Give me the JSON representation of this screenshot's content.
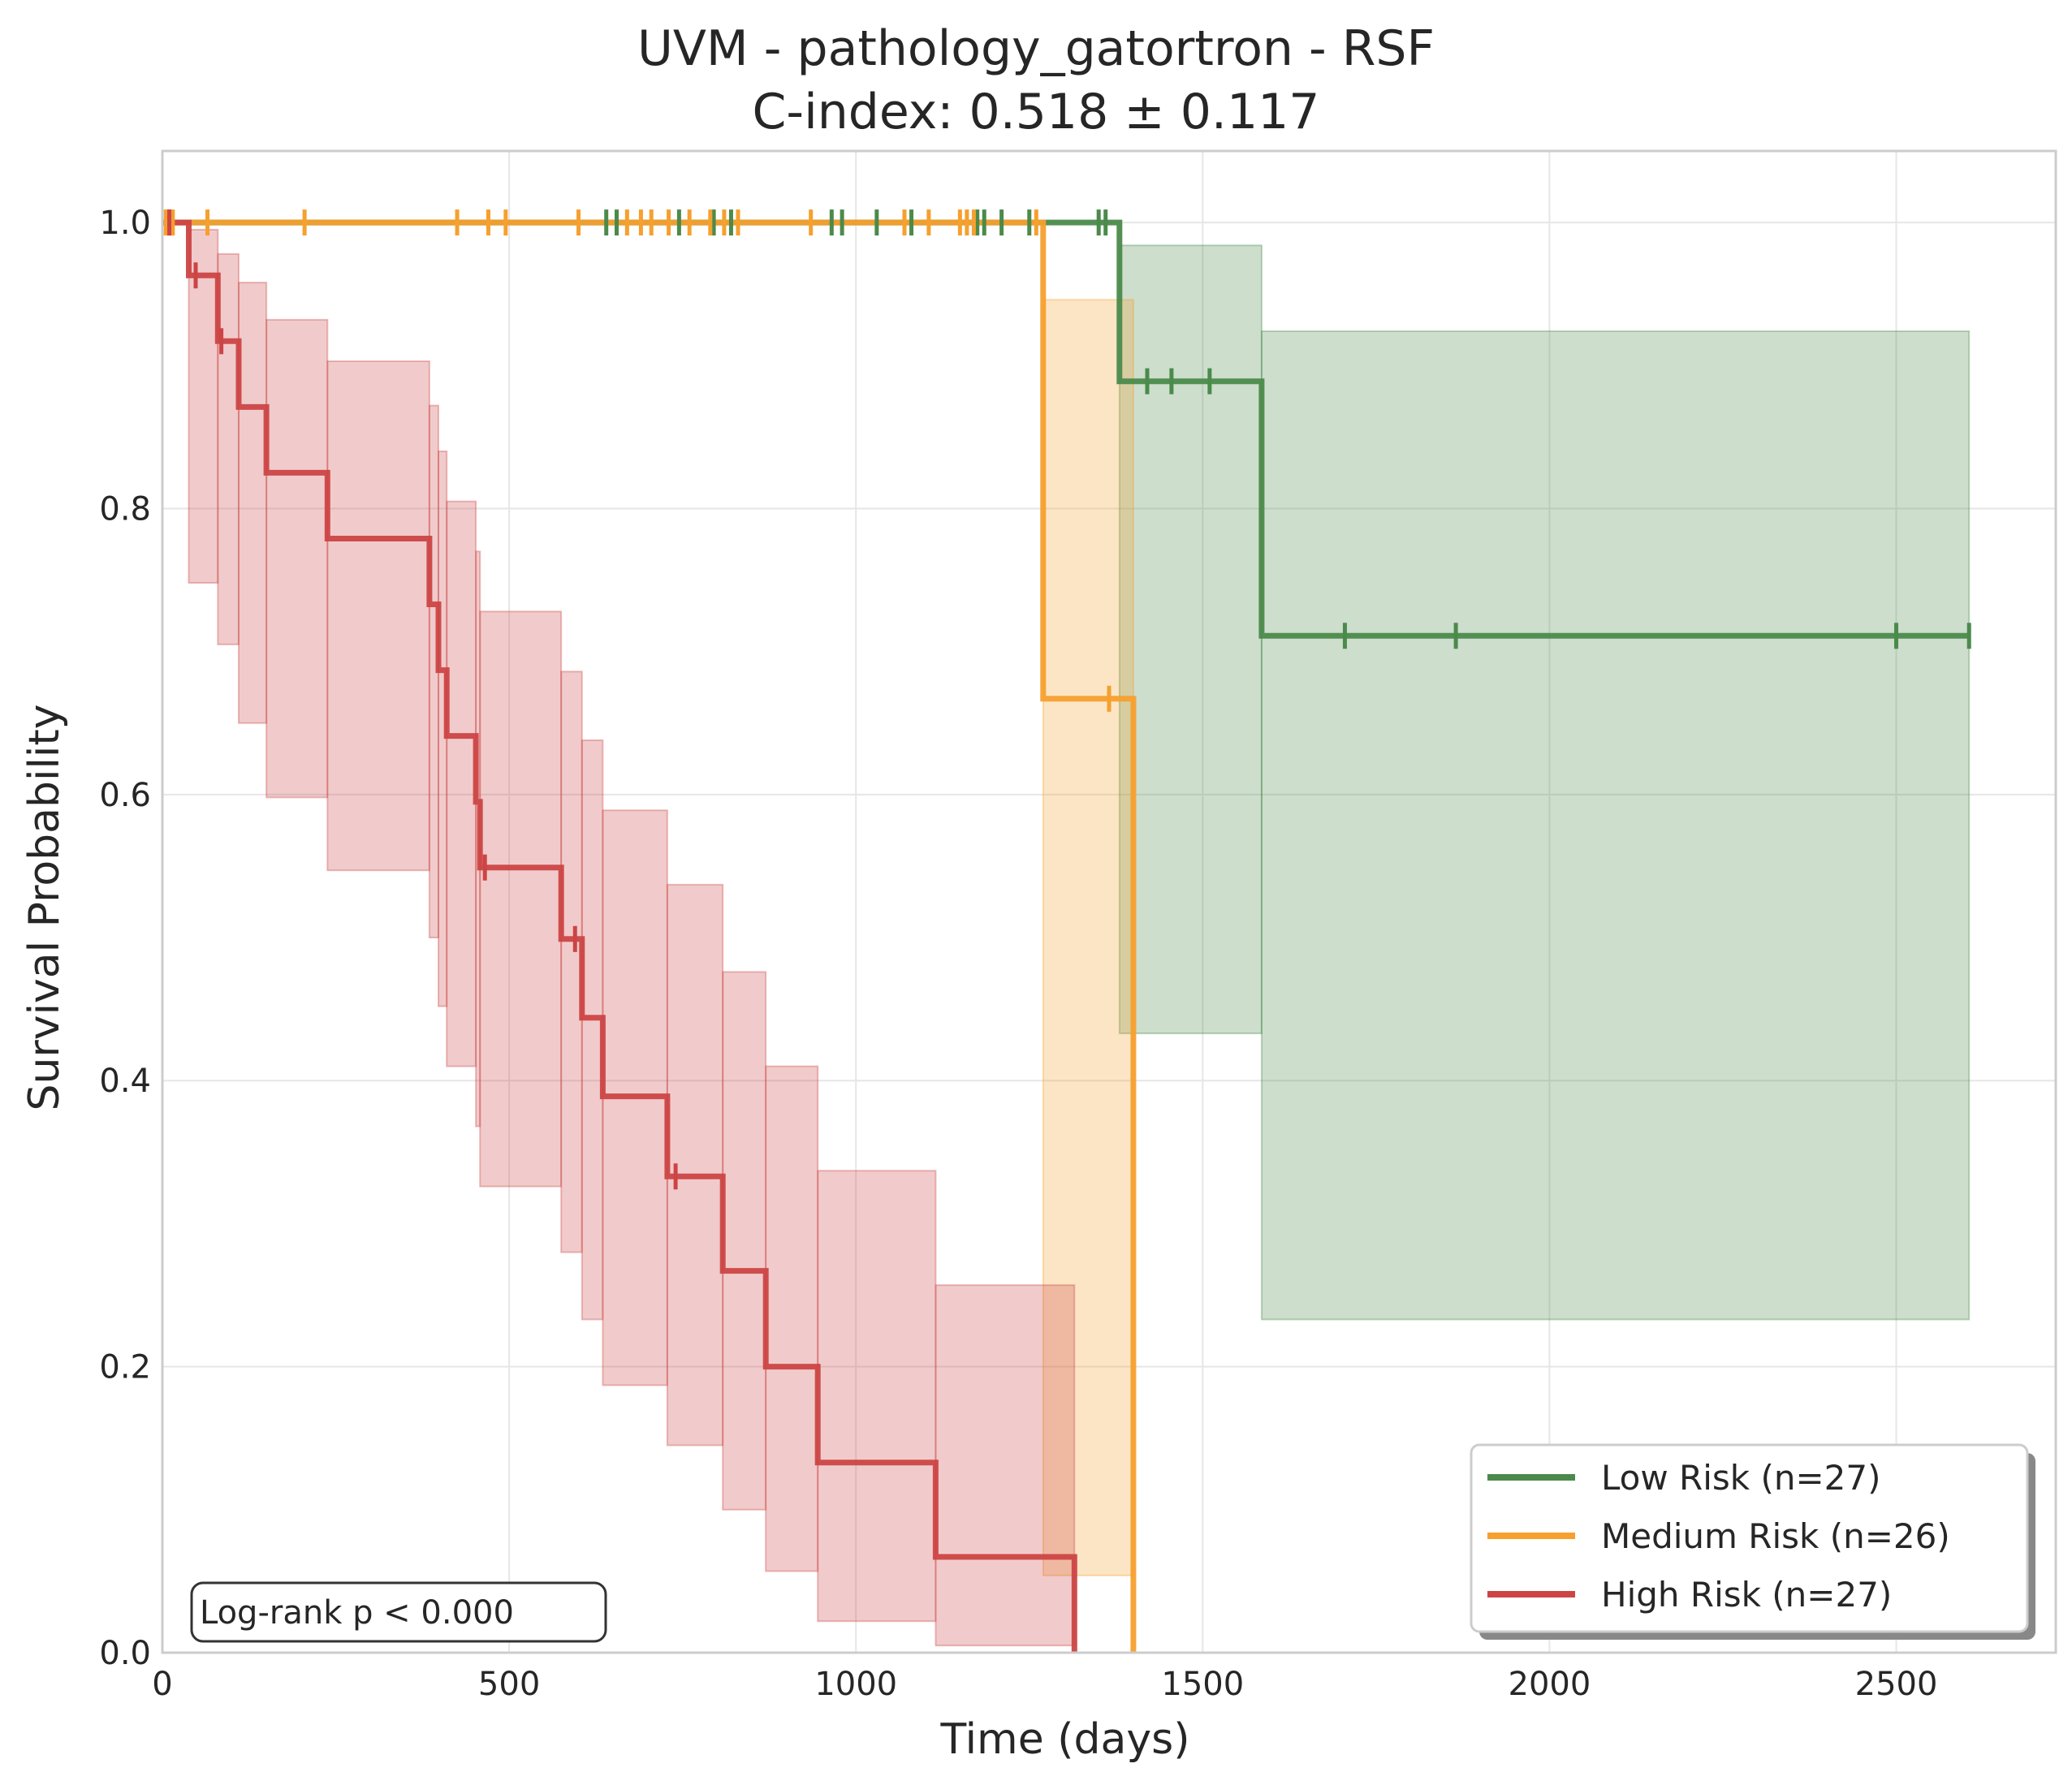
{
  "chart_data": {
    "type": "line",
    "title": "UVM - pathology_gatortron - RSF",
    "subtitle": "C-index: 0.518 ± 0.117",
    "xlabel": "Time (days)",
    "ylabel": "Survival Probability",
    "xlim": [
      0,
      2730
    ],
    "ylim": [
      0,
      1.05
    ],
    "x_ticks": [
      0,
      500,
      1000,
      1500,
      2000,
      2500
    ],
    "x_tick_labels": [
      "0",
      "500",
      "1000",
      "1500",
      "2000",
      "2500"
    ],
    "y_ticks": [
      0.0,
      0.2,
      0.4,
      0.6,
      0.8,
      1.0
    ],
    "y_tick_labels": [
      "0.0",
      "0.2",
      "0.4",
      "0.6",
      "0.8",
      "1.0"
    ],
    "grid": true,
    "legend_position": "bottom-right",
    "annotation": "Log-rank p < 0.000",
    "series": [
      {
        "name": "Low Risk (n=27)",
        "color": "#4b8a4b",
        "fill_color": "#4b8a4b",
        "steps": [
          [
            0,
            1.0
          ],
          [
            1380,
            1.0
          ],
          [
            1380,
            0.889
          ],
          [
            1585,
            0.889
          ],
          [
            1585,
            0.711
          ],
          [
            2605,
            0.711
          ]
        ],
        "ci": [
          {
            "x0": 1380,
            "x1": 1585,
            "lo": 0.433,
            "hi": 0.984
          },
          {
            "x0": 1585,
            "x1": 2605,
            "lo": 0.233,
            "hi": 0.924
          }
        ],
        "censor": [
          10,
          640,
          655,
          745,
          795,
          820,
          965,
          980,
          1030,
          1080,
          1175,
          1185,
          1210,
          1250,
          1350,
          1360,
          1420,
          1455,
          1510,
          1705,
          1865,
          2500,
          2605
        ]
      },
      {
        "name": "Medium Risk (n=26)",
        "color": "#f5a02f",
        "fill_color": "#f5a02f",
        "steps": [
          [
            0,
            1.0
          ],
          [
            1270,
            1.0
          ],
          [
            1270,
            0.667
          ],
          [
            1400,
            0.667
          ],
          [
            1400,
            0.0
          ]
        ],
        "ci": [
          {
            "x0": 1270,
            "x1": 1400,
            "lo": 0.054,
            "hi": 0.946
          }
        ],
        "censor": [
          5,
          15,
          65,
          205,
          425,
          470,
          495,
          600,
          670,
          690,
          705,
          730,
          760,
          790,
          810,
          830,
          935,
          1070,
          1105,
          1150,
          1160,
          1170,
          1260,
          1365
        ]
      },
      {
        "name": "High Risk (n=27)",
        "color": "#cc4444",
        "fill_color": "#cc4444",
        "steps": [
          [
            0,
            1.0
          ],
          [
            38,
            1.0
          ],
          [
            38,
            0.963
          ],
          [
            80,
            0.963
          ],
          [
            80,
            0.917
          ],
          [
            110,
            0.917
          ],
          [
            110,
            0.871
          ],
          [
            150,
            0.871
          ],
          [
            150,
            0.825
          ],
          [
            238,
            0.825
          ],
          [
            238,
            0.779
          ],
          [
            385,
            0.779
          ],
          [
            385,
            0.733
          ],
          [
            398,
            0.733
          ],
          [
            398,
            0.687
          ],
          [
            410,
            0.687
          ],
          [
            410,
            0.641
          ],
          [
            452,
            0.641
          ],
          [
            452,
            0.595
          ],
          [
            458,
            0.595
          ],
          [
            458,
            0.549
          ],
          [
            575,
            0.549
          ],
          [
            575,
            0.499
          ],
          [
            605,
            0.499
          ],
          [
            605,
            0.444
          ],
          [
            635,
            0.444
          ],
          [
            635,
            0.389
          ],
          [
            728,
            0.389
          ],
          [
            728,
            0.333
          ],
          [
            808,
            0.333
          ],
          [
            808,
            0.267
          ],
          [
            870,
            0.267
          ],
          [
            870,
            0.2
          ],
          [
            945,
            0.2
          ],
          [
            945,
            0.133
          ],
          [
            1115,
            0.133
          ],
          [
            1115,
            0.067
          ],
          [
            1315,
            0.067
          ],
          [
            1315,
            0.0
          ]
        ],
        "ci": [
          {
            "x0": 38,
            "x1": 80,
            "lo": 0.748,
            "hi": 0.995
          },
          {
            "x0": 80,
            "x1": 110,
            "lo": 0.705,
            "hi": 0.978
          },
          {
            "x0": 110,
            "x1": 150,
            "lo": 0.65,
            "hi": 0.958
          },
          {
            "x0": 150,
            "x1": 238,
            "lo": 0.598,
            "hi": 0.932
          },
          {
            "x0": 238,
            "x1": 385,
            "lo": 0.547,
            "hi": 0.903
          },
          {
            "x0": 385,
            "x1": 398,
            "lo": 0.5,
            "hi": 0.872
          },
          {
            "x0": 398,
            "x1": 410,
            "lo": 0.452,
            "hi": 0.84
          },
          {
            "x0": 410,
            "x1": 452,
            "lo": 0.41,
            "hi": 0.805
          },
          {
            "x0": 452,
            "x1": 458,
            "lo": 0.368,
            "hi": 0.77
          },
          {
            "x0": 458,
            "x1": 575,
            "lo": 0.326,
            "hi": 0.728
          },
          {
            "x0": 575,
            "x1": 605,
            "lo": 0.28,
            "hi": 0.686
          },
          {
            "x0": 605,
            "x1": 635,
            "lo": 0.233,
            "hi": 0.638
          },
          {
            "x0": 635,
            "x1": 728,
            "lo": 0.187,
            "hi": 0.589
          },
          {
            "x0": 728,
            "x1": 808,
            "lo": 0.145,
            "hi": 0.537
          },
          {
            "x0": 808,
            "x1": 870,
            "lo": 0.1,
            "hi": 0.476
          },
          {
            "x0": 870,
            "x1": 945,
            "lo": 0.057,
            "hi": 0.41
          },
          {
            "x0": 945,
            "x1": 1115,
            "lo": 0.022,
            "hi": 0.337
          },
          {
            "x0": 1115,
            "x1": 1315,
            "lo": 0.005,
            "hi": 0.257
          }
        ],
        "censor": [
          10,
          48,
          85,
          465,
          595,
          740
        ]
      }
    ]
  }
}
